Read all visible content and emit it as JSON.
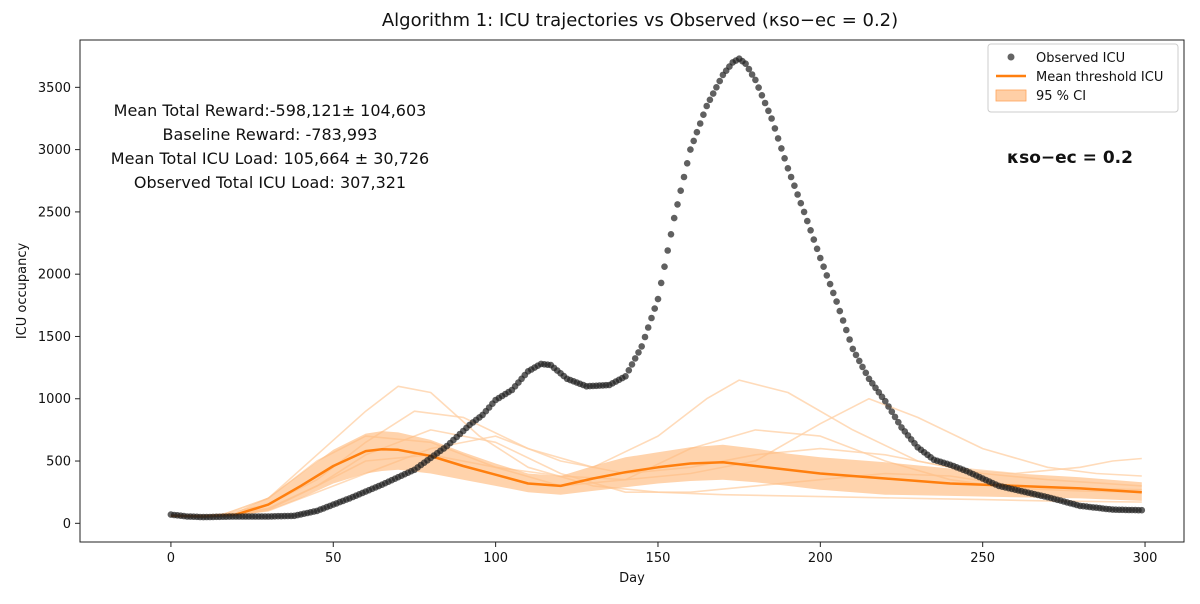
{
  "chart_data": {
    "type": "scatter",
    "title": "Algorithm 1: ICU trajectories vs Observed (κso−ec = 0.2)",
    "xlabel": "Day",
    "ylabel": "ICU occupancy",
    "xlim": [
      -28,
      312
    ],
    "ylim": [
      -150,
      3880
    ],
    "xticks": [
      0,
      50,
      100,
      150,
      200,
      250,
      300
    ],
    "yticks": [
      0,
      500,
      1000,
      1500,
      2000,
      2500,
      3000,
      3500
    ],
    "legend": {
      "placement": "top-right",
      "entries": [
        {
          "label": "Observed ICU",
          "kind": "marker",
          "color": "#222222"
        },
        {
          "label": "Mean threshold ICU",
          "kind": "line",
          "color": "#ff7f0e"
        },
        {
          "label": "95 % CI",
          "kind": "patch",
          "color": "#ffbb80"
        }
      ]
    },
    "annotations": {
      "stats": [
        "Mean Total Reward:-598,121± 104,603",
        "Baseline Reward: -783,993",
        "Mean Total ICU Load: 105,664 ± 30,726",
        "Observed Total ICU Load: 307,321"
      ],
      "kappa": "κso−ec = 0.2"
    },
    "colors": {
      "observed": "#222222",
      "mean": "#ff7f0e",
      "ci": "#ffbb80",
      "trajectories": "#ffcfa3"
    },
    "observed": {
      "name": "Observed ICU",
      "x_start": 0,
      "x_step": 1,
      "x": [
        0,
        5,
        10,
        20,
        30,
        38,
        45,
        55,
        65,
        75,
        85,
        92,
        96,
        100,
        105,
        110,
        114,
        117,
        122,
        128,
        135,
        140,
        145,
        150,
        155,
        160,
        165,
        170,
        173,
        175,
        177,
        180,
        185,
        190,
        195,
        200,
        205,
        210,
        215,
        220,
        225,
        230,
        235,
        240,
        245,
        250,
        255,
        260,
        270,
        280,
        290,
        299
      ],
      "y": [
        70,
        55,
        50,
        55,
        55,
        60,
        100,
        200,
        310,
        430,
        620,
        790,
        870,
        990,
        1070,
        1220,
        1280,
        1270,
        1160,
        1100,
        1110,
        1180,
        1420,
        1800,
        2450,
        3000,
        3350,
        3600,
        3700,
        3730,
        3690,
        3560,
        3250,
        2850,
        2500,
        2130,
        1780,
        1400,
        1160,
        980,
        770,
        610,
        510,
        470,
        420,
        360,
        300,
        270,
        210,
        140,
        110,
        105
      ]
    },
    "mean": {
      "name": "Mean threshold ICU",
      "x": [
        0,
        10,
        20,
        30,
        40,
        50,
        60,
        65,
        70,
        80,
        90,
        100,
        110,
        120,
        130,
        140,
        150,
        160,
        170,
        180,
        190,
        200,
        220,
        240,
        260,
        280,
        299
      ],
      "y": [
        60,
        55,
        70,
        150,
        300,
        460,
        580,
        595,
        590,
        540,
        460,
        390,
        320,
        300,
        360,
        410,
        450,
        480,
        490,
        460,
        430,
        400,
        360,
        320,
        300,
        280,
        250
      ]
    },
    "ci": {
      "name": "95 % CI",
      "x": [
        0,
        10,
        20,
        30,
        40,
        50,
        60,
        65,
        70,
        80,
        90,
        100,
        110,
        120,
        130,
        140,
        150,
        160,
        170,
        180,
        190,
        200,
        220,
        240,
        260,
        280,
        299
      ],
      "lower": [
        50,
        45,
        55,
        100,
        200,
        320,
        400,
        420,
        430,
        400,
        350,
        300,
        250,
        230,
        260,
        290,
        320,
        340,
        350,
        330,
        300,
        270,
        230,
        220,
        210,
        200,
        180
      ],
      "upper": [
        75,
        65,
        90,
        210,
        400,
        590,
        720,
        740,
        730,
        670,
        570,
        480,
        400,
        380,
        460,
        530,
        570,
        610,
        630,
        600,
        560,
        530,
        490,
        440,
        400,
        370,
        330
      ]
    },
    "trajectories": [
      {
        "x": [
          0,
          15,
          30,
          45,
          60,
          70,
          80,
          95,
          110,
          130,
          150,
          170,
          190,
          210,
          230,
          250,
          270,
          299
        ],
        "y": [
          60,
          60,
          200,
          550,
          900,
          1100,
          1050,
          700,
          450,
          300,
          250,
          230,
          220,
          210,
          200,
          190,
          180,
          170
        ]
      },
      {
        "x": [
          0,
          15,
          30,
          45,
          60,
          75,
          90,
          110,
          130,
          150,
          165,
          175,
          190,
          210,
          230,
          250,
          270,
          299
        ],
        "y": [
          60,
          70,
          150,
          350,
          650,
          900,
          850,
          600,
          450,
          700,
          1000,
          1150,
          1050,
          750,
          500,
          400,
          350,
          300
        ]
      },
      {
        "x": [
          0,
          15,
          30,
          45,
          60,
          80,
          100,
          120,
          140,
          160,
          180,
          200,
          215,
          230,
          250,
          270,
          285,
          299
        ],
        "y": [
          60,
          60,
          120,
          300,
          500,
          550,
          450,
          380,
          350,
          400,
          500,
          800,
          1000,
          850,
          600,
          450,
          400,
          380
        ]
      },
      {
        "x": [
          0,
          15,
          30,
          45,
          60,
          80,
          100,
          120,
          140,
          160,
          180,
          200,
          220,
          240,
          260,
          280,
          290,
          299
        ],
        "y": [
          60,
          60,
          100,
          250,
          400,
          600,
          700,
          500,
          400,
          450,
          550,
          600,
          550,
          450,
          400,
          450,
          500,
          520
        ]
      },
      {
        "x": [
          0,
          15,
          30,
          45,
          60,
          80,
          100,
          120,
          140,
          160,
          180,
          200,
          220,
          240,
          260,
          280,
          299
        ],
        "y": [
          60,
          60,
          200,
          500,
          700,
          650,
          450,
          300,
          350,
          600,
          750,
          700,
          500,
          350,
          280,
          260,
          250
        ]
      },
      {
        "x": [
          0,
          15,
          30,
          45,
          60,
          80,
          100,
          120,
          140,
          160,
          180,
          200,
          220,
          240,
          260,
          280,
          299
        ],
        "y": [
          60,
          60,
          110,
          300,
          550,
          750,
          650,
          400,
          250,
          250,
          300,
          350,
          400,
          380,
          300,
          280,
          270
        ]
      }
    ]
  }
}
